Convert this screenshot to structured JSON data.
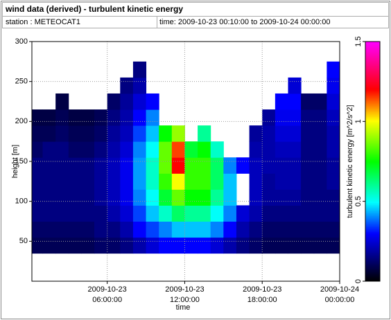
{
  "chart_data": {
    "type": "heatmap",
    "title": "wind data (derived) - turbulent kinetic energy",
    "station": "station : METEOCAT1",
    "period": "time: 2009-10-23 00:10:00 to 2009-10-24 00:00:00",
    "x_label": "time",
    "y_label": "height [m]",
    "colorbar_label": "turbulent kinetic energy [m^2/s^2]",
    "xlim": [
      "2009-10-23 00:10:00",
      "2009-10-24 00:00:00"
    ],
    "xticks": [
      "2009-10-23 06:00:00",
      "2009-10-23 12:00:00",
      "2009-10-23 18:00:00",
      "2009-10-24 00:00:00"
    ],
    "ylim": [
      0,
      300
    ],
    "yticks": [
      50,
      100,
      150,
      200,
      250,
      300
    ],
    "zlim": [
      0,
      1.5
    ],
    "zticks": [
      0,
      0.5,
      1,
      1.5
    ],
    "grid": true,
    "x": [
      "2009-10-23 00:10:00",
      "2009-10-23 01:00:00",
      "2009-10-23 02:00:00",
      "2009-10-23 03:00:00",
      "2009-10-23 04:00:00",
      "2009-10-23 05:00:00",
      "2009-10-23 06:00:00",
      "2009-10-23 07:00:00",
      "2009-10-23 08:00:00",
      "2009-10-23 09:00:00",
      "2009-10-23 10:00:00",
      "2009-10-23 11:00:00",
      "2009-10-23 12:00:00",
      "2009-10-23 13:00:00",
      "2009-10-23 14:00:00",
      "2009-10-23 15:00:00",
      "2009-10-23 16:00:00",
      "2009-10-23 17:00:00",
      "2009-10-23 18:00:00",
      "2009-10-23 19:00:00",
      "2009-10-23 20:00:00",
      "2009-10-23 21:00:00",
      "2009-10-23 22:00:00",
      "2009-10-23 23:00:00"
    ],
    "y": [
      35,
      55,
      75,
      95,
      115,
      135,
      155,
      175,
      195,
      215,
      235,
      255
    ],
    "y_step": 20,
    "z": [
      [
        0.1,
        0.12,
        0.15,
        0.15,
        0.15,
        0.15,
        0.12,
        0.1,
        0.08,
        null,
        null,
        null
      ],
      [
        0.1,
        0.12,
        0.15,
        0.15,
        0.15,
        0.15,
        0.15,
        0.1,
        0.08,
        null,
        null,
        null
      ],
      [
        0.1,
        0.12,
        0.15,
        0.15,
        0.15,
        0.15,
        0.15,
        0.12,
        0.1,
        0.08,
        null,
        null
      ],
      [
        0.1,
        0.12,
        0.15,
        0.15,
        0.15,
        0.15,
        0.12,
        0.1,
        0.08,
        null,
        null,
        null
      ],
      [
        0.1,
        0.12,
        0.15,
        0.15,
        0.15,
        0.15,
        0.12,
        0.1,
        0.08,
        null,
        null,
        null
      ],
      [
        0.12,
        0.15,
        0.15,
        0.18,
        0.18,
        0.18,
        0.15,
        0.12,
        0.1,
        null,
        null,
        null
      ],
      [
        0.12,
        0.15,
        0.2,
        0.22,
        0.22,
        0.22,
        0.2,
        0.18,
        0.15,
        0.12,
        null,
        null
      ],
      [
        0.15,
        0.2,
        0.25,
        0.28,
        0.28,
        0.28,
        0.25,
        0.22,
        0.2,
        0.18,
        0.15,
        null
      ],
      [
        0.2,
        0.3,
        0.35,
        0.4,
        0.42,
        0.42,
        0.4,
        0.35,
        0.3,
        0.25,
        0.2,
        0.15
      ],
      [
        0.25,
        0.35,
        0.45,
        0.5,
        0.55,
        0.55,
        0.5,
        0.45,
        0.4,
        0.3,
        null,
        null
      ],
      [
        0.3,
        0.4,
        0.55,
        0.7,
        0.8,
        0.85,
        0.85,
        0.75,
        null,
        null,
        null,
        null
      ],
      [
        0.3,
        0.45,
        0.65,
        0.85,
        1.0,
        1.2,
        1.15,
        0.9,
        null,
        null,
        null,
        null
      ],
      [
        0.3,
        0.45,
        0.6,
        0.75,
        0.8,
        0.8,
        0.7,
        null,
        null,
        null,
        null,
        null
      ],
      [
        0.3,
        0.45,
        0.6,
        0.75,
        0.8,
        0.8,
        0.75,
        0.6,
        null,
        null,
        null,
        null
      ],
      [
        0.25,
        0.4,
        0.5,
        0.6,
        0.65,
        0.65,
        0.55,
        null,
        null,
        null,
        null,
        null
      ],
      [
        0.2,
        0.3,
        0.4,
        0.45,
        0.45,
        0.4,
        null,
        null,
        null,
        null,
        null,
        null
      ],
      [
        0.15,
        0.2,
        0.25,
        null,
        null,
        0.3,
        null,
        null,
        null,
        null,
        null,
        null
      ],
      [
        0.12,
        0.15,
        0.2,
        0.22,
        0.22,
        0.22,
        0.2,
        0.18,
        null,
        null,
        null,
        null
      ],
      [
        0.1,
        0.12,
        0.15,
        0.18,
        0.18,
        0.2,
        0.2,
        0.2,
        0.18,
        null,
        null,
        null
      ],
      [
        0.1,
        0.12,
        0.15,
        0.18,
        0.2,
        0.2,
        0.22,
        0.25,
        0.28,
        0.3,
        null,
        null
      ],
      [
        0.1,
        0.12,
        0.15,
        0.18,
        0.2,
        0.2,
        0.22,
        0.25,
        0.28,
        0.3,
        0.25,
        null
      ],
      [
        0.1,
        0.12,
        0.15,
        0.15,
        0.15,
        0.15,
        0.15,
        0.15,
        0.15,
        0.12,
        null,
        null
      ],
      [
        0.1,
        0.12,
        0.15,
        0.15,
        0.15,
        0.15,
        0.15,
        0.15,
        0.15,
        0.12,
        null,
        null
      ],
      [
        0.1,
        0.12,
        0.15,
        0.15,
        0.18,
        0.18,
        0.2,
        0.2,
        0.22,
        0.25,
        0.28,
        0.3
      ]
    ]
  }
}
